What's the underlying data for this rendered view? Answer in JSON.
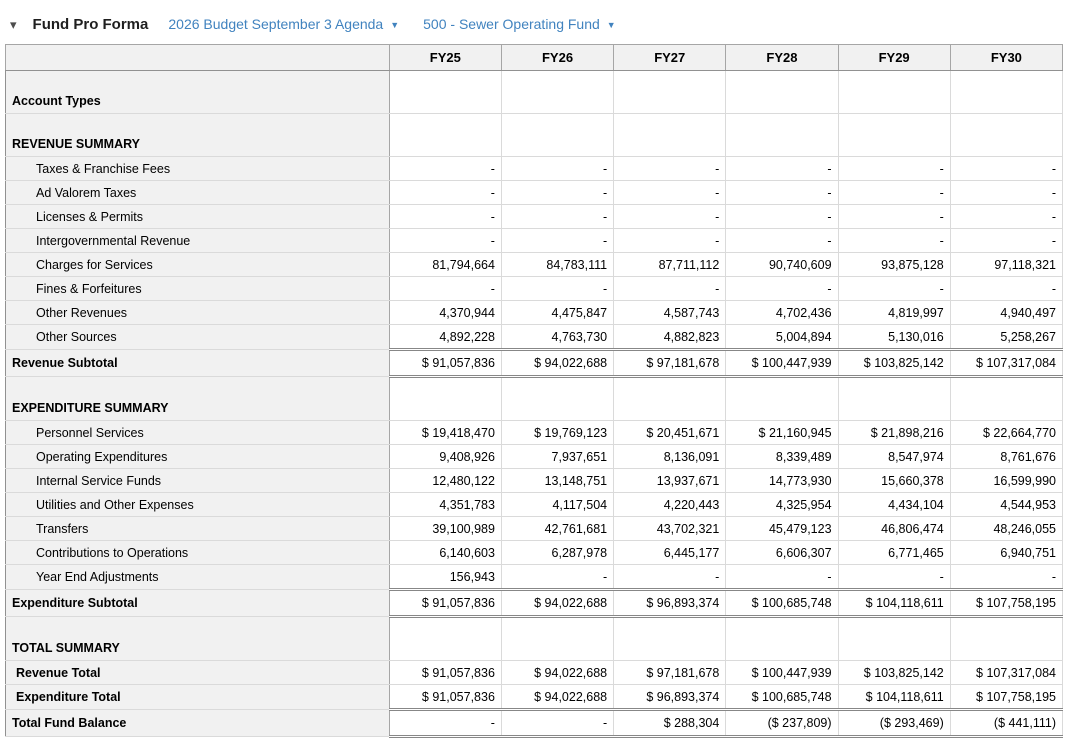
{
  "header": {
    "collapse_icon": "▾",
    "title": "Fund Pro Forma",
    "dropdowns": [
      {
        "label": "2026 Budget September 3 Agenda",
        "caret_icon": "▼"
      },
      {
        "label": "500 - Sewer Operating Fund",
        "caret_icon": "▼"
      }
    ]
  },
  "colors": {
    "link_blue": "#4183bf",
    "header_bg": "#f1f1f1",
    "border_gray": "#919191"
  },
  "table": {
    "columns": [
      "FY25",
      "FY26",
      "FY27",
      "FY28",
      "FY29",
      "FY30"
    ],
    "rows": [
      {
        "label": "Account Types",
        "type": "section",
        "values": [
          "",
          "",
          "",
          "",
          "",
          ""
        ]
      },
      {
        "label": "REVENUE SUMMARY",
        "type": "section",
        "values": [
          "",
          "",
          "",
          "",
          "",
          ""
        ]
      },
      {
        "label": "Taxes & Franchise Fees",
        "type": "detail",
        "values": [
          "-",
          "-",
          "-",
          "-",
          "-",
          "-"
        ]
      },
      {
        "label": "Ad Valorem Taxes",
        "type": "detail",
        "values": [
          "-",
          "-",
          "-",
          "-",
          "-",
          "-"
        ]
      },
      {
        "label": "Licenses & Permits",
        "type": "detail",
        "values": [
          "-",
          "-",
          "-",
          "-",
          "-",
          "-"
        ]
      },
      {
        "label": "Intergovernmental Revenue",
        "type": "detail",
        "values": [
          "-",
          "-",
          "-",
          "-",
          "-",
          "-"
        ]
      },
      {
        "label": "Charges for Services",
        "type": "detail",
        "values": [
          "81,794,664",
          "84,783,111",
          "87,711,112",
          "90,740,609",
          "93,875,128",
          "97,118,321"
        ]
      },
      {
        "label": "Fines & Forfeitures",
        "type": "detail",
        "values": [
          "-",
          "-",
          "-",
          "-",
          "-",
          "-"
        ]
      },
      {
        "label": "Other Revenues",
        "type": "detail",
        "values": [
          "4,370,944",
          "4,475,847",
          "4,587,743",
          "4,702,436",
          "4,819,997",
          "4,940,497"
        ]
      },
      {
        "label": "Other Sources",
        "type": "detail",
        "values": [
          "4,892,228",
          "4,763,730",
          "4,882,823",
          "5,004,894",
          "5,130,016",
          "5,258,267"
        ]
      },
      {
        "label": "Revenue Subtotal",
        "type": "subtotal",
        "values": [
          "$ 91,057,836",
          "$ 94,022,688",
          "$ 97,181,678",
          "$ 100,447,939",
          "$ 103,825,142",
          "$ 107,317,084"
        ]
      },
      {
        "label": "EXPENDITURE SUMMARY",
        "type": "section",
        "values": [
          "",
          "",
          "",
          "",
          "",
          ""
        ]
      },
      {
        "label": "Personnel Services",
        "type": "detail",
        "values": [
          "$ 19,418,470",
          "$ 19,769,123",
          "$ 20,451,671",
          "$ 21,160,945",
          "$ 21,898,216",
          "$ 22,664,770"
        ]
      },
      {
        "label": "Operating Expenditures",
        "type": "detail",
        "values": [
          "9,408,926",
          "7,937,651",
          "8,136,091",
          "8,339,489",
          "8,547,974",
          "8,761,676"
        ]
      },
      {
        "label": "Internal Service Funds",
        "type": "detail",
        "values": [
          "12,480,122",
          "13,148,751",
          "13,937,671",
          "14,773,930",
          "15,660,378",
          "16,599,990"
        ]
      },
      {
        "label": "Utilities and Other Expenses",
        "type": "detail",
        "values": [
          "4,351,783",
          "4,117,504",
          "4,220,443",
          "4,325,954",
          "4,434,104",
          "4,544,953"
        ]
      },
      {
        "label": "Transfers",
        "type": "detail",
        "values": [
          "39,100,989",
          "42,761,681",
          "43,702,321",
          "45,479,123",
          "46,806,474",
          "48,246,055"
        ]
      },
      {
        "label": "Contributions to Operations",
        "type": "detail",
        "values": [
          "6,140,603",
          "6,287,978",
          "6,445,177",
          "6,606,307",
          "6,771,465",
          "6,940,751"
        ]
      },
      {
        "label": "Year End Adjustments",
        "type": "detail",
        "values": [
          "156,943",
          "-",
          "-",
          "-",
          "-",
          "-"
        ]
      },
      {
        "label": "Expenditure Subtotal",
        "type": "subtotal",
        "values": [
          "$ 91,057,836",
          "$ 94,022,688",
          "$ 96,893,374",
          "$ 100,685,748",
          "$ 104,118,611",
          "$ 107,758,195"
        ]
      },
      {
        "label": "TOTAL SUMMARY",
        "type": "section",
        "values": [
          "",
          "",
          "",
          "",
          "",
          ""
        ]
      },
      {
        "label": "Revenue Total",
        "type": "total",
        "values": [
          "$ 91,057,836",
          "$ 94,022,688",
          "$ 97,181,678",
          "$ 100,447,939",
          "$ 103,825,142",
          "$ 107,317,084"
        ]
      },
      {
        "label": "Expenditure Total",
        "type": "total",
        "values": [
          "$ 91,057,836",
          "$ 94,022,688",
          "$ 96,893,374",
          "$ 100,685,748",
          "$ 104,118,611",
          "$ 107,758,195"
        ]
      },
      {
        "label": "Total Fund Balance",
        "type": "grand",
        "values": [
          "-",
          "-",
          "$ 288,304",
          "($ 237,809)",
          "($ 293,469)",
          "($ 441,111)"
        ]
      }
    ]
  }
}
